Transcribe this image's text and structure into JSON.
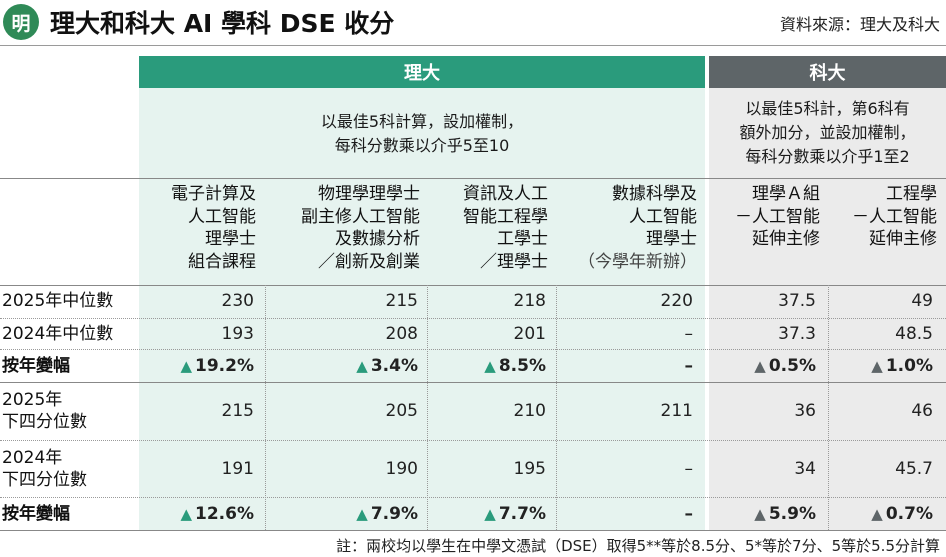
{
  "header": {
    "logo_char": "明",
    "title": "理大和科大 AI 學科 DSE 收分",
    "source": "資料來源：理大及科大"
  },
  "groups": {
    "polyu": {
      "name": "理大",
      "note": [
        "以最佳5科計算，設加權制，",
        "每科分數乘以介乎5至10"
      ]
    },
    "hkust": {
      "name": "科大",
      "note": [
        "以最佳5科計，第6科有",
        "額外加分，並設加權制，",
        "每科分數乘以介乎1至2"
      ]
    }
  },
  "columns": [
    {
      "lines": [
        "電子計算及",
        "人工智能",
        "理學士",
        "組合課程"
      ],
      "sub": ""
    },
    {
      "lines": [
        "物理學理學士",
        "副主修人工智能",
        "及數據分析",
        "／創新及創業"
      ],
      "sub": ""
    },
    {
      "lines": [
        "資訊及人工",
        "智能工程學",
        "工學士",
        "／理學士"
      ],
      "sub": ""
    },
    {
      "lines": [
        "數據科學及",
        "人工智能",
        "理學士"
      ],
      "sub": "（今學年新辦）"
    },
    {
      "lines": [
        "理學Ａ組",
        "－人工智能",
        "延伸主修"
      ],
      "sub": ""
    },
    {
      "lines": [
        "工程學",
        "－人工智能",
        "延伸主修"
      ],
      "sub": ""
    }
  ],
  "rows": [
    {
      "label": [
        "2025年中位數"
      ],
      "bold": false,
      "values": [
        "230",
        "215",
        "218",
        "220",
        "37.5",
        "49"
      ]
    },
    {
      "label": [
        "2024年中位數"
      ],
      "bold": false,
      "values": [
        "193",
        "208",
        "201",
        "–",
        "37.3",
        "48.5"
      ]
    },
    {
      "label": [
        "按年變幅"
      ],
      "bold": true,
      "values": [
        "19.2%",
        "3.4%",
        "8.5%",
        "–",
        "0.5%",
        "1.0%"
      ],
      "arrows": [
        true,
        true,
        true,
        false,
        true,
        true
      ]
    },
    {
      "label": [
        "2025年",
        "下四分位數"
      ],
      "bold": false,
      "values": [
        "215",
        "205",
        "210",
        "211",
        "36",
        "46"
      ]
    },
    {
      "label": [
        "2024年",
        "下四分位數"
      ],
      "bold": false,
      "values": [
        "191",
        "190",
        "195",
        "–",
        "34",
        "45.7"
      ]
    },
    {
      "label": [
        "按年變幅"
      ],
      "bold": true,
      "values": [
        "12.6%",
        "7.9%",
        "7.7%",
        "–",
        "5.9%",
        "0.7%"
      ],
      "arrows": [
        true,
        true,
        true,
        false,
        true,
        true
      ]
    }
  ],
  "footnote": "註：兩校均以學生在中學文憑試（DSE）取得5**等於8.5分、5*等於7分、5等於5.5分計算",
  "colors": {
    "teal": "#2a9b7c",
    "teal_light": "#e6f3ef",
    "grey": "#5e6568",
    "grey_light": "#ebebeb",
    "logo_green": "#2f8a57"
  },
  "icons": {
    "increase": "up-triangle-icon"
  }
}
